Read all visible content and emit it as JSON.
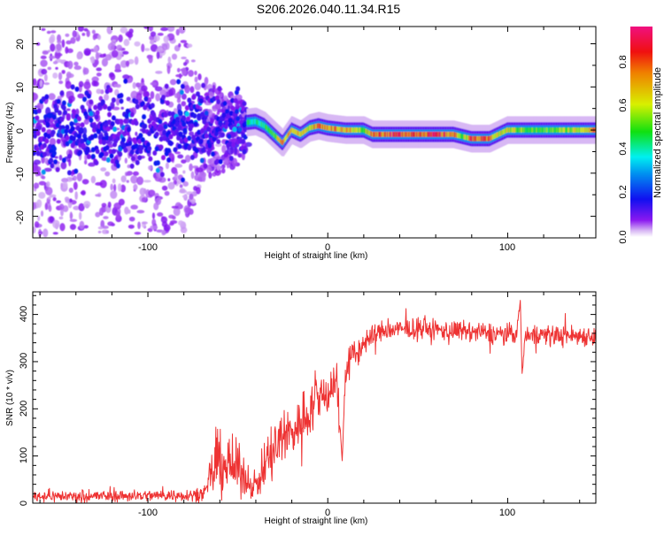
{
  "title": "S206.2026.040.11.34.R15",
  "chart_data": [
    {
      "type": "heatmap",
      "title": "S206.2026.040.11.34.R15",
      "xlabel": "Height of straight line (km)",
      "ylabel": "Frequency (Hz)",
      "xlim": [
        -164,
        149
      ],
      "ylim": [
        -25,
        24
      ],
      "xticks": [
        -100,
        0,
        100
      ],
      "yticks": [
        -20,
        -10,
        0,
        10,
        20
      ],
      "colorbar": {
        "label": "Normalized spectral amplitude",
        "range": [
          0,
          1
        ],
        "ticks": [
          "0.0",
          "0.2",
          "0.4",
          "0.6",
          "0.8"
        ]
      },
      "peak_track": {
        "x": [
          -164,
          -140,
          -120,
          -100,
          -80,
          -70,
          -60,
          -50,
          -40,
          -35,
          -30,
          -25,
          -20,
          -15,
          -10,
          -5,
          0,
          10,
          20,
          25,
          40,
          60,
          70,
          75,
          80,
          90,
          95,
          100,
          110,
          120,
          140,
          149
        ],
        "freq": [
          0,
          0,
          0,
          0,
          0,
          1,
          0,
          1.5,
          2,
          1,
          -1,
          -3,
          0,
          -1,
          0.5,
          1,
          0.5,
          0,
          0,
          -1,
          -1,
          -1,
          -1,
          -1.5,
          -2,
          -2,
          -1,
          0,
          0,
          0,
          0,
          0
        ],
        "amplitude": [
          0.12,
          0.12,
          0.14,
          0.15,
          0.18,
          0.3,
          0.3,
          0.4,
          0.5,
          0.5,
          0.6,
          0.8,
          0.85,
          0.7,
          0.75,
          0.85,
          0.85,
          0.8,
          0.6,
          0.9,
          0.95,
          0.95,
          0.85,
          0.6,
          0.9,
          0.85,
          0.7,
          0.7,
          0.6,
          0.55,
          0.7,
          0.9
        ]
      },
      "noise_spread_hz": {
        "x": [
          -164,
          -80,
          -70,
          -50,
          -40,
          150
        ],
        "spread": [
          24,
          24,
          12,
          8,
          3,
          2
        ]
      }
    },
    {
      "type": "line",
      "xlabel": "Height of straight line (km)",
      "ylabel": "SNR (10 * v/v)",
      "xlim": [
        -164,
        149
      ],
      "ylim": [
        0,
        448
      ],
      "xticks": [
        -100,
        0,
        100
      ],
      "yticks": [
        0,
        100,
        200,
        300,
        400
      ],
      "series": [
        {
          "name": "SNR",
          "color": "#ee3333",
          "x": [
            -164,
            -120,
            -80,
            -68,
            -65,
            -60,
            -55,
            -50,
            -45,
            -40,
            -35,
            -30,
            -25,
            -20,
            -15,
            -10,
            -5,
            0,
            5,
            8,
            10,
            15,
            20,
            25,
            30,
            50,
            70,
            90,
            105,
            107,
            108,
            110,
            130,
            149
          ],
          "mean": [
            15,
            15,
            17,
            20,
            60,
            90,
            80,
            70,
            50,
            35,
            80,
            110,
            140,
            150,
            175,
            200,
            220,
            240,
            260,
            90,
            290,
            310,
            340,
            355,
            365,
            370,
            365,
            360,
            360,
            430,
            275,
            360,
            355,
            355
          ],
          "noise": [
            10,
            10,
            10,
            12,
            40,
            60,
            55,
            45,
            30,
            20,
            50,
            60,
            55,
            45,
            45,
            50,
            45,
            45,
            40,
            0,
            35,
            30,
            25,
            20,
            18,
            18,
            18,
            18,
            18,
            0,
            0,
            18,
            18,
            18
          ]
        }
      ]
    }
  ]
}
